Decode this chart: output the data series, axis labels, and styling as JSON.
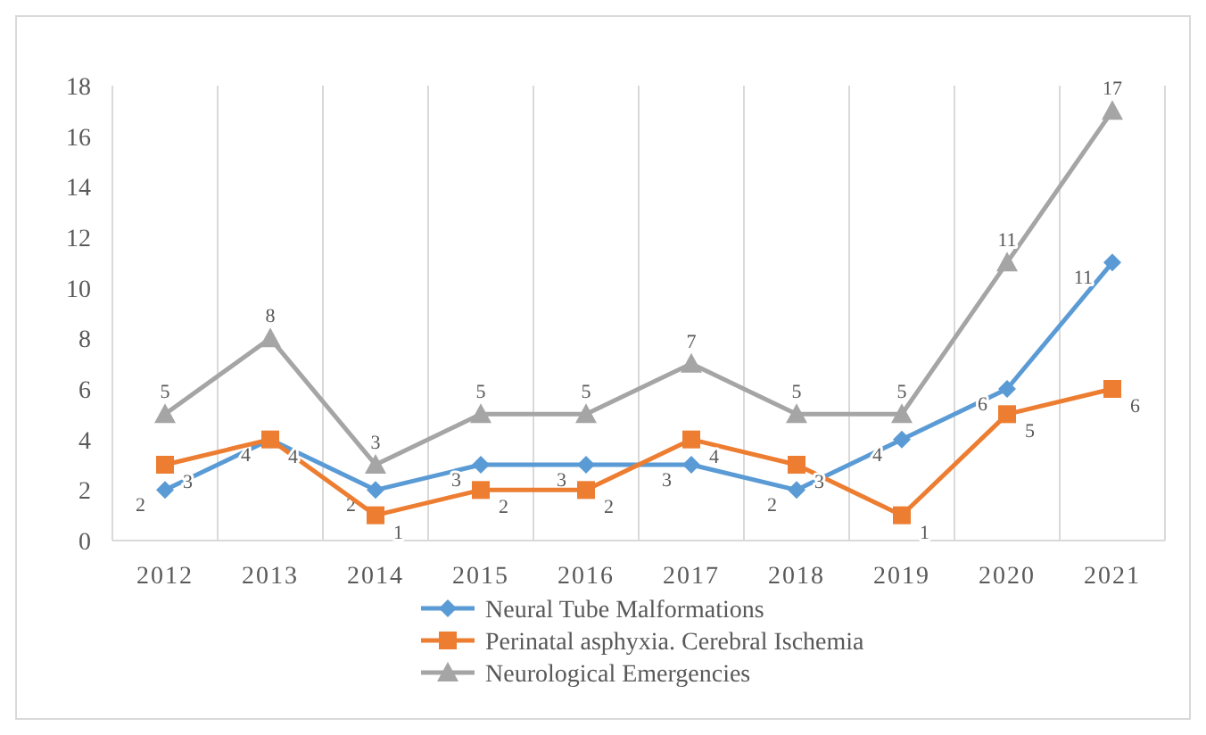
{
  "chart_data": {
    "type": "line",
    "categories": [
      "2012",
      "2013",
      "2014",
      "2015",
      "2016",
      "2017",
      "2018",
      "2019",
      "2020",
      "2021"
    ],
    "series": [
      {
        "name": "Neural Tube Malformations",
        "color": "#5b9bd5",
        "marker": "diamond",
        "values": [
          2,
          4,
          2,
          3,
          3,
          3,
          2,
          4,
          6,
          11
        ]
      },
      {
        "name": "Perinatal asphyxia. Cerebral Ischemia",
        "color": "#ed7d31",
        "marker": "square",
        "values": [
          3,
          4,
          1,
          2,
          2,
          4,
          3,
          1,
          5,
          6
        ]
      },
      {
        "name": "Neurological Emergencies",
        "color": "#a5a5a5",
        "marker": "triangle",
        "values": [
          5,
          8,
          3,
          5,
          5,
          7,
          5,
          5,
          11,
          17
        ]
      }
    ],
    "ylim": [
      0,
      18
    ],
    "yticks": [
      0,
      2,
      4,
      6,
      8,
      10,
      12,
      14,
      16,
      18
    ],
    "grid": "x",
    "legend": "bottom",
    "data_labels": true
  }
}
